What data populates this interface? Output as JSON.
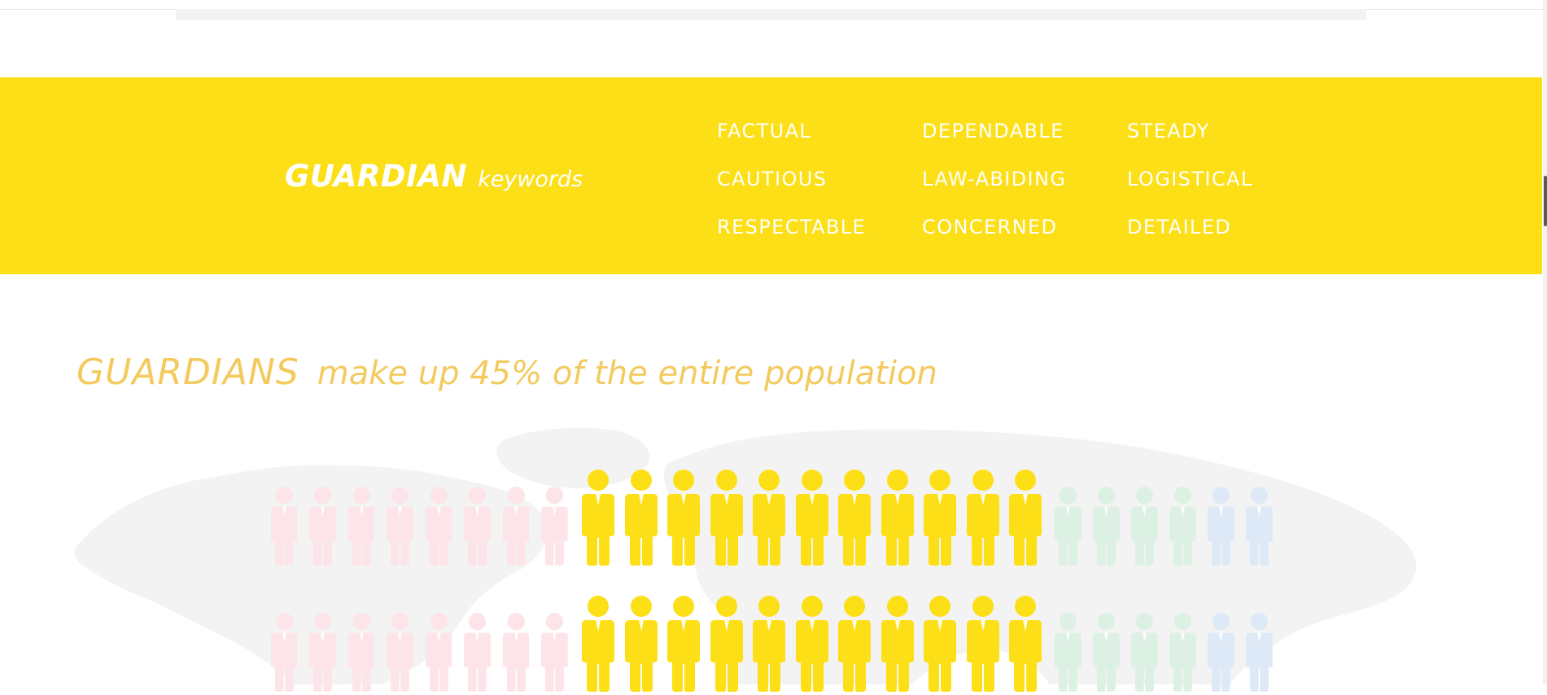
{
  "keywords_section": {
    "title": "GUARDIAN",
    "subtitle": "keywords",
    "items": [
      "FACTUAL",
      "DEPENDABLE",
      "STEADY",
      "CAUTIOUS",
      "LAW-ABIDING",
      "LOGISTICAL",
      "RESPECTABLE",
      "CONCERNED",
      "DETAILED"
    ],
    "band_color": "#fddf17"
  },
  "population": {
    "highlight": "GUARDIANS",
    "text": "make up 45% of the entire population",
    "percent": 45,
    "rows": 2,
    "per_row": {
      "pink": 8,
      "yellow": 11,
      "green": 4,
      "blue": 2
    },
    "colors": {
      "pink": "#fde4e8",
      "yellow": "#fddf17",
      "green": "#dcf1e3",
      "blue": "#dde9f6",
      "headline": "#f3ca5e",
      "map": "#f3f3f3"
    },
    "background": "world-map"
  }
}
